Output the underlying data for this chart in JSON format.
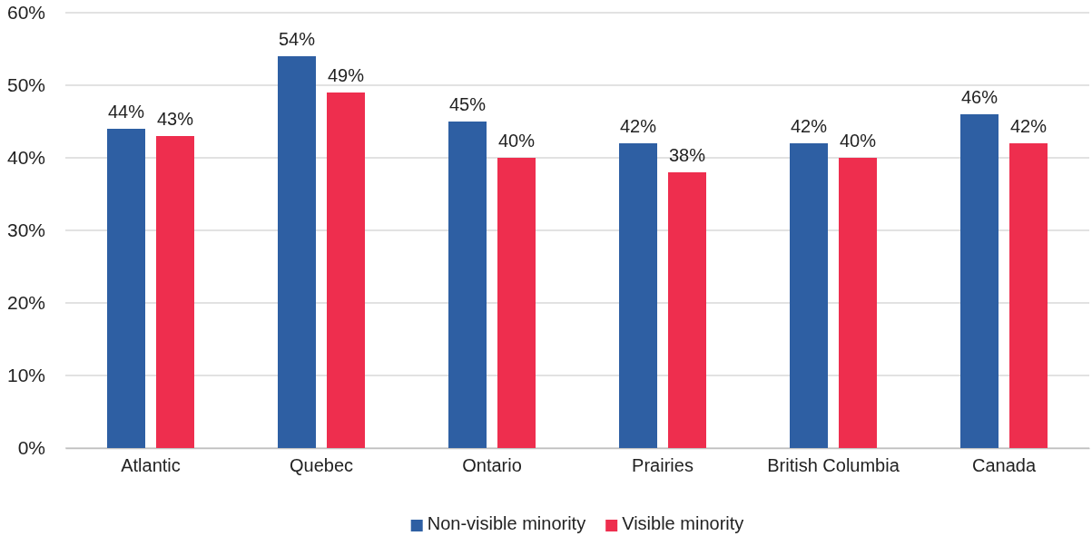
{
  "chart_data": {
    "type": "bar",
    "categories": [
      "Atlantic",
      "Quebec",
      "Ontario",
      "Prairies",
      "British Columbia",
      "Canada"
    ],
    "series": [
      {
        "name": "Non-visible minority",
        "color": "#2e5fa3",
        "values": [
          44,
          54,
          45,
          42,
          42,
          46
        ],
        "value_labels": [
          "44%",
          "54%",
          "45%",
          "42%",
          "42%",
          "46%"
        ]
      },
      {
        "name": "Visible minority",
        "color": "#ee2e4e",
        "values": [
          43,
          49,
          40,
          38,
          40,
          42
        ],
        "value_labels": [
          "43%",
          "49%",
          "40%",
          "38%",
          "40%",
          "42%"
        ]
      }
    ],
    "ylim": [
      0,
      60
    ],
    "yticks": [
      {
        "value": 0,
        "label": "0%"
      },
      {
        "value": 10,
        "label": "10%"
      },
      {
        "value": 20,
        "label": "20%"
      },
      {
        "value": 30,
        "label": "30%"
      },
      {
        "value": 40,
        "label": "40%"
      },
      {
        "value": 50,
        "label": "50%"
      },
      {
        "value": 60,
        "label": "60%"
      }
    ],
    "grid": "y",
    "legend": "bottom"
  }
}
